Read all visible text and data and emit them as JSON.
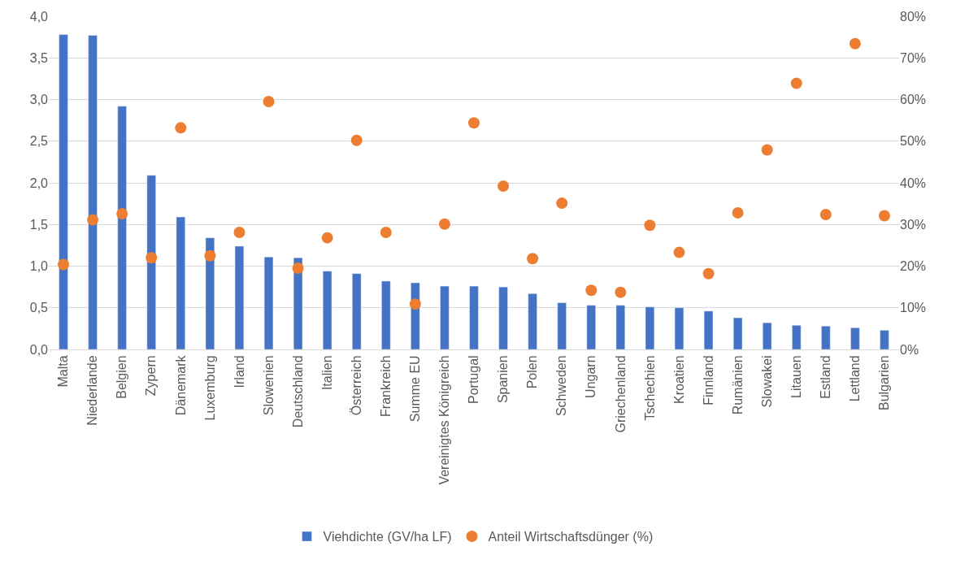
{
  "chart_data": {
    "type": "bar",
    "categories": [
      "Malta",
      "Niederlande",
      "Belgien",
      "Zypern",
      "Dänemark",
      "Luxemburg",
      "Irland",
      "Slowenien",
      "Deutschland",
      "Italien",
      "Österreich",
      "Frankreich",
      "Summe EU",
      "Vereinigtes Königreich",
      "Portugal",
      "Spanien",
      "Polen",
      "Schweden",
      "Ungarn",
      "Griechenland",
      "Tschechien",
      "Kroatien",
      "Finnland",
      "Rumänien",
      "Slowakei",
      "Litauen",
      "Estland",
      "Lettland",
      "Bulgarien"
    ],
    "series": [
      {
        "name": "Viehdichte (GV/ha LF)",
        "color": "#4472c4",
        "values": [
          3.78,
          3.77,
          2.92,
          2.09,
          1.59,
          1.34,
          1.24,
          1.11,
          1.1,
          0.94,
          0.91,
          0.82,
          0.8,
          0.76,
          0.76,
          0.75,
          0.67,
          0.56,
          0.53,
          0.53,
          0.51,
          0.5,
          0.46,
          0.38,
          0.32,
          0.29,
          0.28,
          0.26,
          0.23
        ]
      },
      {
        "name": "Anteil Wirtschaftsdünger (%)",
        "type": "scatter",
        "axis": "y2",
        "marker": "circle",
        "color": "#ed7d31",
        "values": [
          20.4,
          31.1,
          32.6,
          22.0,
          53.2,
          22.5,
          28.1,
          59.5,
          19.5,
          26.8,
          50.2,
          28.1,
          10.9,
          30.1,
          54.4,
          39.2,
          21.8,
          35.1,
          14.2,
          13.7,
          29.8,
          23.3,
          18.2,
          32.8,
          47.9,
          63.9,
          32.4,
          73.4,
          32.1
        ]
      }
    ],
    "ylim": [
      0,
      4
    ],
    "yticks": [
      {
        "value": 0,
        "label": "0,0"
      },
      {
        "value": 0.5,
        "label": "0,5"
      },
      {
        "value": 1,
        "label": "1,0"
      },
      {
        "value": 1.5,
        "label": "1,5"
      },
      {
        "value": 2,
        "label": "2,0"
      },
      {
        "value": 2.5,
        "label": "2,5"
      },
      {
        "value": 3,
        "label": "3,0"
      },
      {
        "value": 3.5,
        "label": "3,5"
      },
      {
        "value": 4,
        "label": "4,0"
      }
    ],
    "y2lim": [
      0,
      80
    ],
    "y2ticks": [
      {
        "value": 0,
        "label": "0%"
      },
      {
        "value": 10,
        "label": "10%"
      },
      {
        "value": 20,
        "label": "20%"
      },
      {
        "value": 30,
        "label": "30%"
      },
      {
        "value": 40,
        "label": "40%"
      },
      {
        "value": 50,
        "label": "50%"
      },
      {
        "value": 60,
        "label": "60%"
      },
      {
        "value": 70,
        "label": "70%"
      },
      {
        "value": 80,
        "label": "80%"
      }
    ],
    "grid": "y",
    "legend": "bottom"
  }
}
